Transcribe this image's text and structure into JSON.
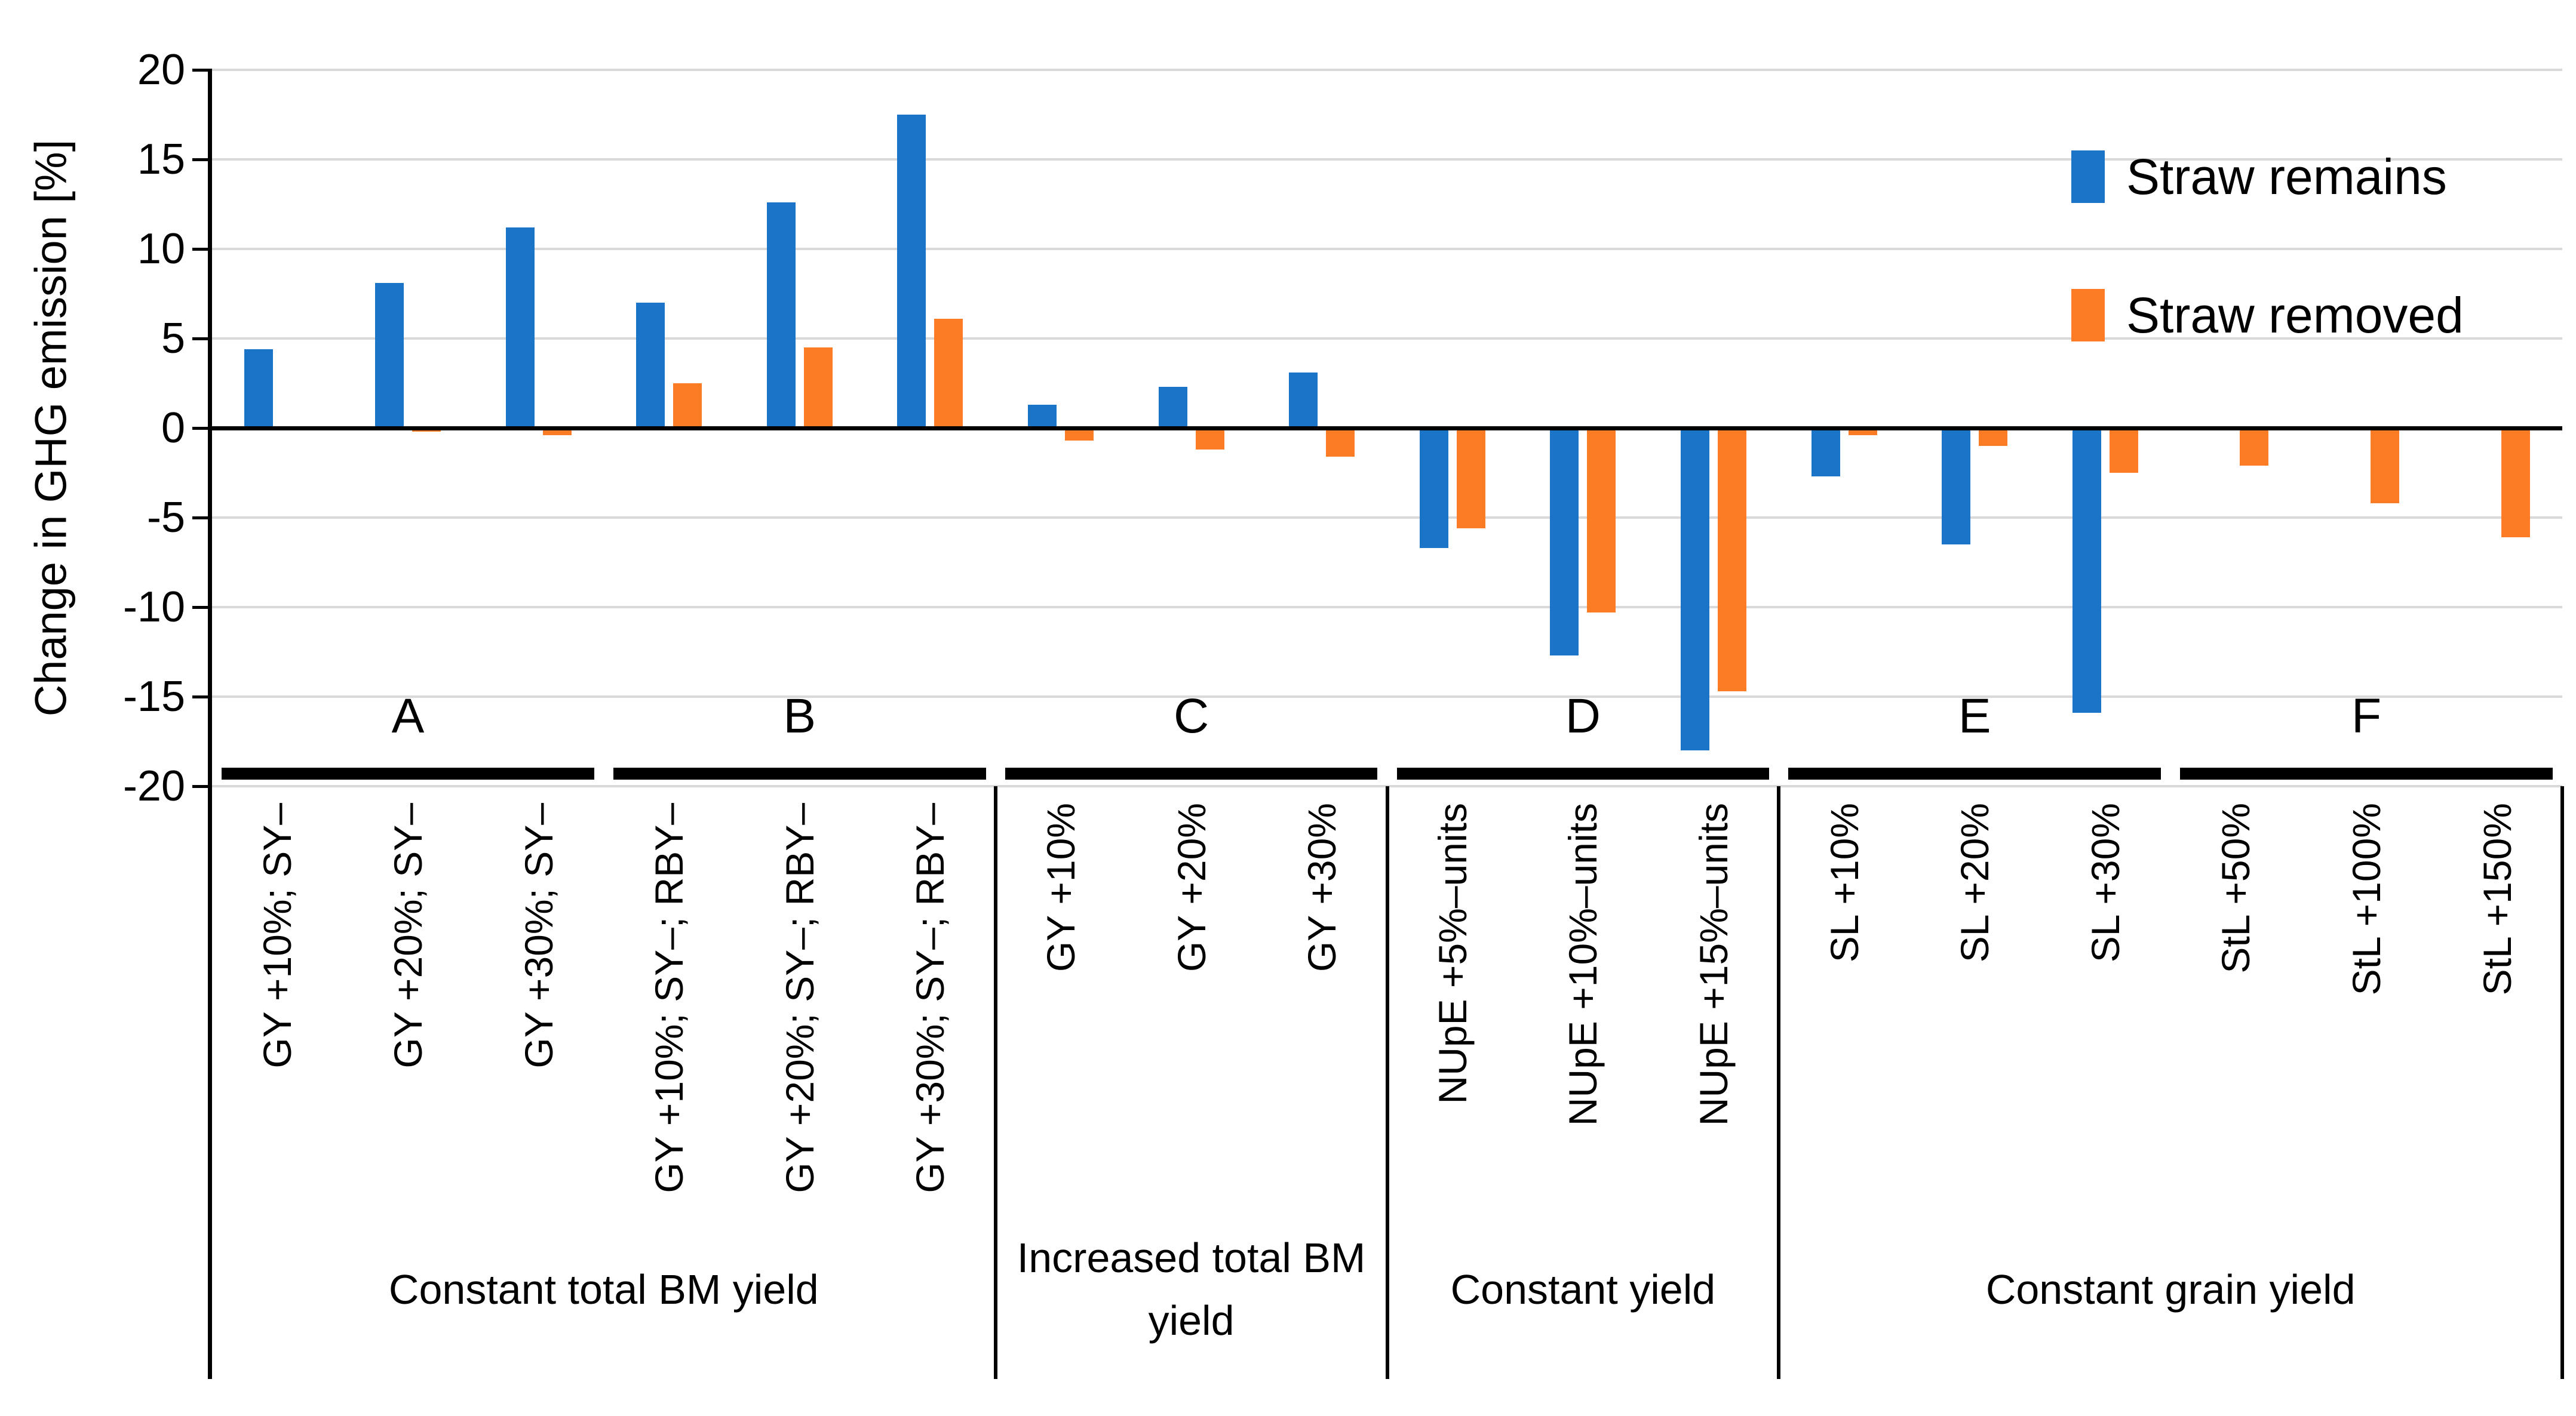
{
  "chart_data": {
    "type": "bar",
    "title": "",
    "ylabel": "Change in GHG emission [%]",
    "ylim": [
      -20,
      20
    ],
    "ytick_step": 5,
    "yticks": [
      20,
      15,
      10,
      5,
      0,
      -5,
      -10,
      -15,
      -20
    ],
    "grid": true,
    "grid_color": "#D9D9D9",
    "axis_color": "#000000",
    "legend_position": "top-right",
    "legend": [
      {
        "name": "Straw remains",
        "color": "#1B74C8"
      },
      {
        "name": "Straw removed",
        "color": "#FB7C24"
      }
    ],
    "series_names": [
      "Straw remains",
      "Straw removed"
    ],
    "groups": [
      {
        "letter": "A",
        "categories": [
          "GY +10%; SY–",
          "GY +20%; SY–",
          "GY +30%; SY–"
        ],
        "straw_remains": [
          4.4,
          8.1,
          11.2
        ],
        "straw_removed": [
          -0.1,
          -0.2,
          -0.4
        ]
      },
      {
        "letter": "B",
        "categories": [
          "GY +10%; SY–; RBY–",
          "GY +20%; SY–; RBY–",
          "GY +30%; SY–; RBY–"
        ],
        "straw_remains": [
          7.0,
          12.6,
          17.5
        ],
        "straw_removed": [
          2.5,
          4.5,
          6.1
        ]
      },
      {
        "letter": "C",
        "categories": [
          "GY +10%",
          "GY +20%",
          "GY +30%"
        ],
        "straw_remains": [
          1.3,
          2.3,
          3.1
        ],
        "straw_removed": [
          -0.7,
          -1.2,
          -1.6
        ]
      },
      {
        "letter": "D",
        "categories": [
          "NUpE +5%–units",
          "NUpE +10%–units",
          "NUpE +15%–units"
        ],
        "straw_remains": [
          -6.7,
          -12.7,
          -18.0
        ],
        "straw_removed": [
          -5.6,
          -10.3,
          -14.7
        ]
      },
      {
        "letter": "E",
        "categories": [
          "SL +10%",
          "SL +20%",
          "SL +30%"
        ],
        "straw_remains": [
          -2.7,
          -6.5,
          -15.9
        ],
        "straw_removed": [
          -0.4,
          -1.0,
          -2.5
        ]
      },
      {
        "letter": "F",
        "categories": [
          "StL +50%",
          "StL +100%",
          "StL +150%"
        ],
        "straw_remains": [
          0,
          0,
          0
        ],
        "straw_removed": [
          -2.1,
          -4.2,
          -6.1
        ]
      }
    ],
    "sections": [
      {
        "label": "Constant total BM yield",
        "groups": [
          "A",
          "B"
        ]
      },
      {
        "label": "Increased total BM yield",
        "groups": [
          "C"
        ]
      },
      {
        "label": "Constant yield",
        "groups": [
          "D"
        ]
      },
      {
        "label": "Constant grain yield",
        "groups": [
          "E",
          "F"
        ]
      }
    ]
  }
}
